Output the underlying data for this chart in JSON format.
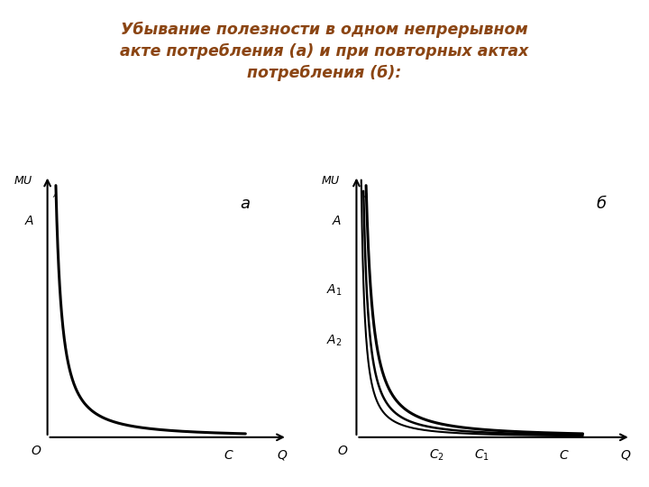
{
  "title": "Убывание полезности в одном непрерывном\nакте потребления (а) и при повторных актах\nпотребления (б):",
  "title_color": "#8B4513",
  "title_fontsize": 12.5,
  "background_color": "#ffffff",
  "label_a": "а",
  "label_b": "б"
}
